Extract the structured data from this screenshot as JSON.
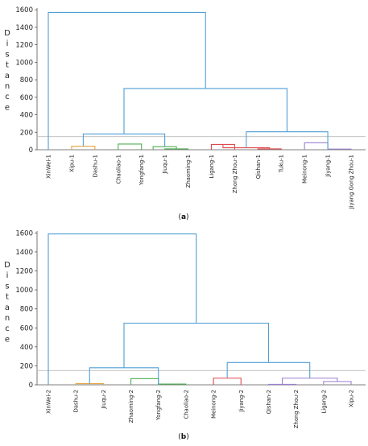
{
  "chart_data": [
    {
      "type": "dendrogram",
      "ylabel": "Distance",
      "ylim": [
        0,
        1620
      ],
      "yticks": [
        0,
        200,
        400,
        600,
        800,
        1000,
        1200,
        1400,
        1600
      ],
      "cut_line": 150,
      "leaves": [
        "XinWei-1",
        "Xipu-1",
        "Dashu-1",
        "Chaoliao-1",
        "Yongfang-1",
        "Jiuqu-1",
        "Zhaoming-1",
        "Ligang-1",
        "Zhong Zhou-1",
        "Qishan-1",
        "Tuku-1",
        "Meinong-1",
        "Jiyang-1",
        "Jiyang Gong Zhou-1"
      ],
      "clusters": [
        {
          "left": 1,
          "right": 2,
          "height": 40,
          "color": "#e8a33d"
        },
        {
          "left": 3,
          "right": 4,
          "height": 65,
          "color": "#4caf50"
        },
        {
          "left": 5,
          "right": 6,
          "height": 10,
          "color": "#4caf50"
        },
        {
          "left": 4.5,
          "right": 5.5,
          "height": 35,
          "color": "#4caf50"
        },
        {
          "left": 1.5,
          "right": 5,
          "height": 180,
          "color": "#4f9fd6"
        },
        {
          "left": 7,
          "right": 8,
          "height": 60,
          "color": "#e0494b"
        },
        {
          "left": 9,
          "right": 10,
          "height": 10,
          "color": "#e0494b"
        },
        {
          "left": 7.5,
          "right": 9.5,
          "height": 22,
          "color": "#e0494b"
        },
        {
          "left": 11,
          "right": 12,
          "height": 80,
          "color": "#9b7fd0"
        },
        {
          "left": 12,
          "right": 13,
          "height": 8,
          "color": "#9b7fd0"
        },
        {
          "left": 8.5,
          "right": 12,
          "height": 205,
          "color": "#4f9fd6"
        },
        {
          "left": 3.25,
          "right": 10.25,
          "height": 700,
          "color": "#4f9fd6"
        },
        {
          "left": 0,
          "right": 6.75,
          "height": 1570,
          "color": "#4f9fd6"
        }
      ]
    },
    {
      "type": "dendrogram",
      "ylabel": "Distance",
      "ylim": [
        0,
        1620
      ],
      "yticks": [
        0,
        200,
        400,
        600,
        800,
        1000,
        1200,
        1400,
        1600
      ],
      "cut_line": 150,
      "leaves": [
        "XinWei-2",
        "Dashu-2",
        "Jiuqu-2",
        "Zhaoming-2",
        "Yongfang-2",
        "Chaoliao-2",
        "Meinong-2",
        "Jiyang-2",
        "Qishan-2",
        "Zhong Zhou-2",
        "Ligang-2",
        "Xipu-2"
      ],
      "clusters": [
        {
          "left": 1,
          "right": 2,
          "height": 12,
          "color": "#e8a33d"
        },
        {
          "left": 3,
          "right": 4,
          "height": 65,
          "color": "#4caf50"
        },
        {
          "left": 4,
          "right": 5,
          "height": 8,
          "color": "#4caf50"
        },
        {
          "left": 1.5,
          "right": 4,
          "height": 180,
          "color": "#4f9fd6"
        },
        {
          "left": 6,
          "right": 7,
          "height": 70,
          "color": "#e0494b"
        },
        {
          "left": 8,
          "right": 9,
          "height": 5,
          "color": "#9b7fd0"
        },
        {
          "left": 10,
          "right": 11,
          "height": 35,
          "color": "#9b7fd0"
        },
        {
          "left": 8.5,
          "right": 10.5,
          "height": 70,
          "color": "#9b7fd0"
        },
        {
          "left": 6.5,
          "right": 9.5,
          "height": 235,
          "color": "#4f9fd6"
        },
        {
          "left": 2.75,
          "right": 8,
          "height": 650,
          "color": "#4f9fd6"
        },
        {
          "left": 0,
          "right": 5.375,
          "height": 1590,
          "color": "#4f9fd6"
        }
      ]
    }
  ],
  "captions": [
    {
      "open": "(",
      "letter": "a",
      "close": ")"
    },
    {
      "open": "(",
      "letter": "b",
      "close": ")"
    }
  ],
  "colors": {
    "axis": "#555555",
    "cutline": "#bbbbbb",
    "text": "#222222"
  }
}
